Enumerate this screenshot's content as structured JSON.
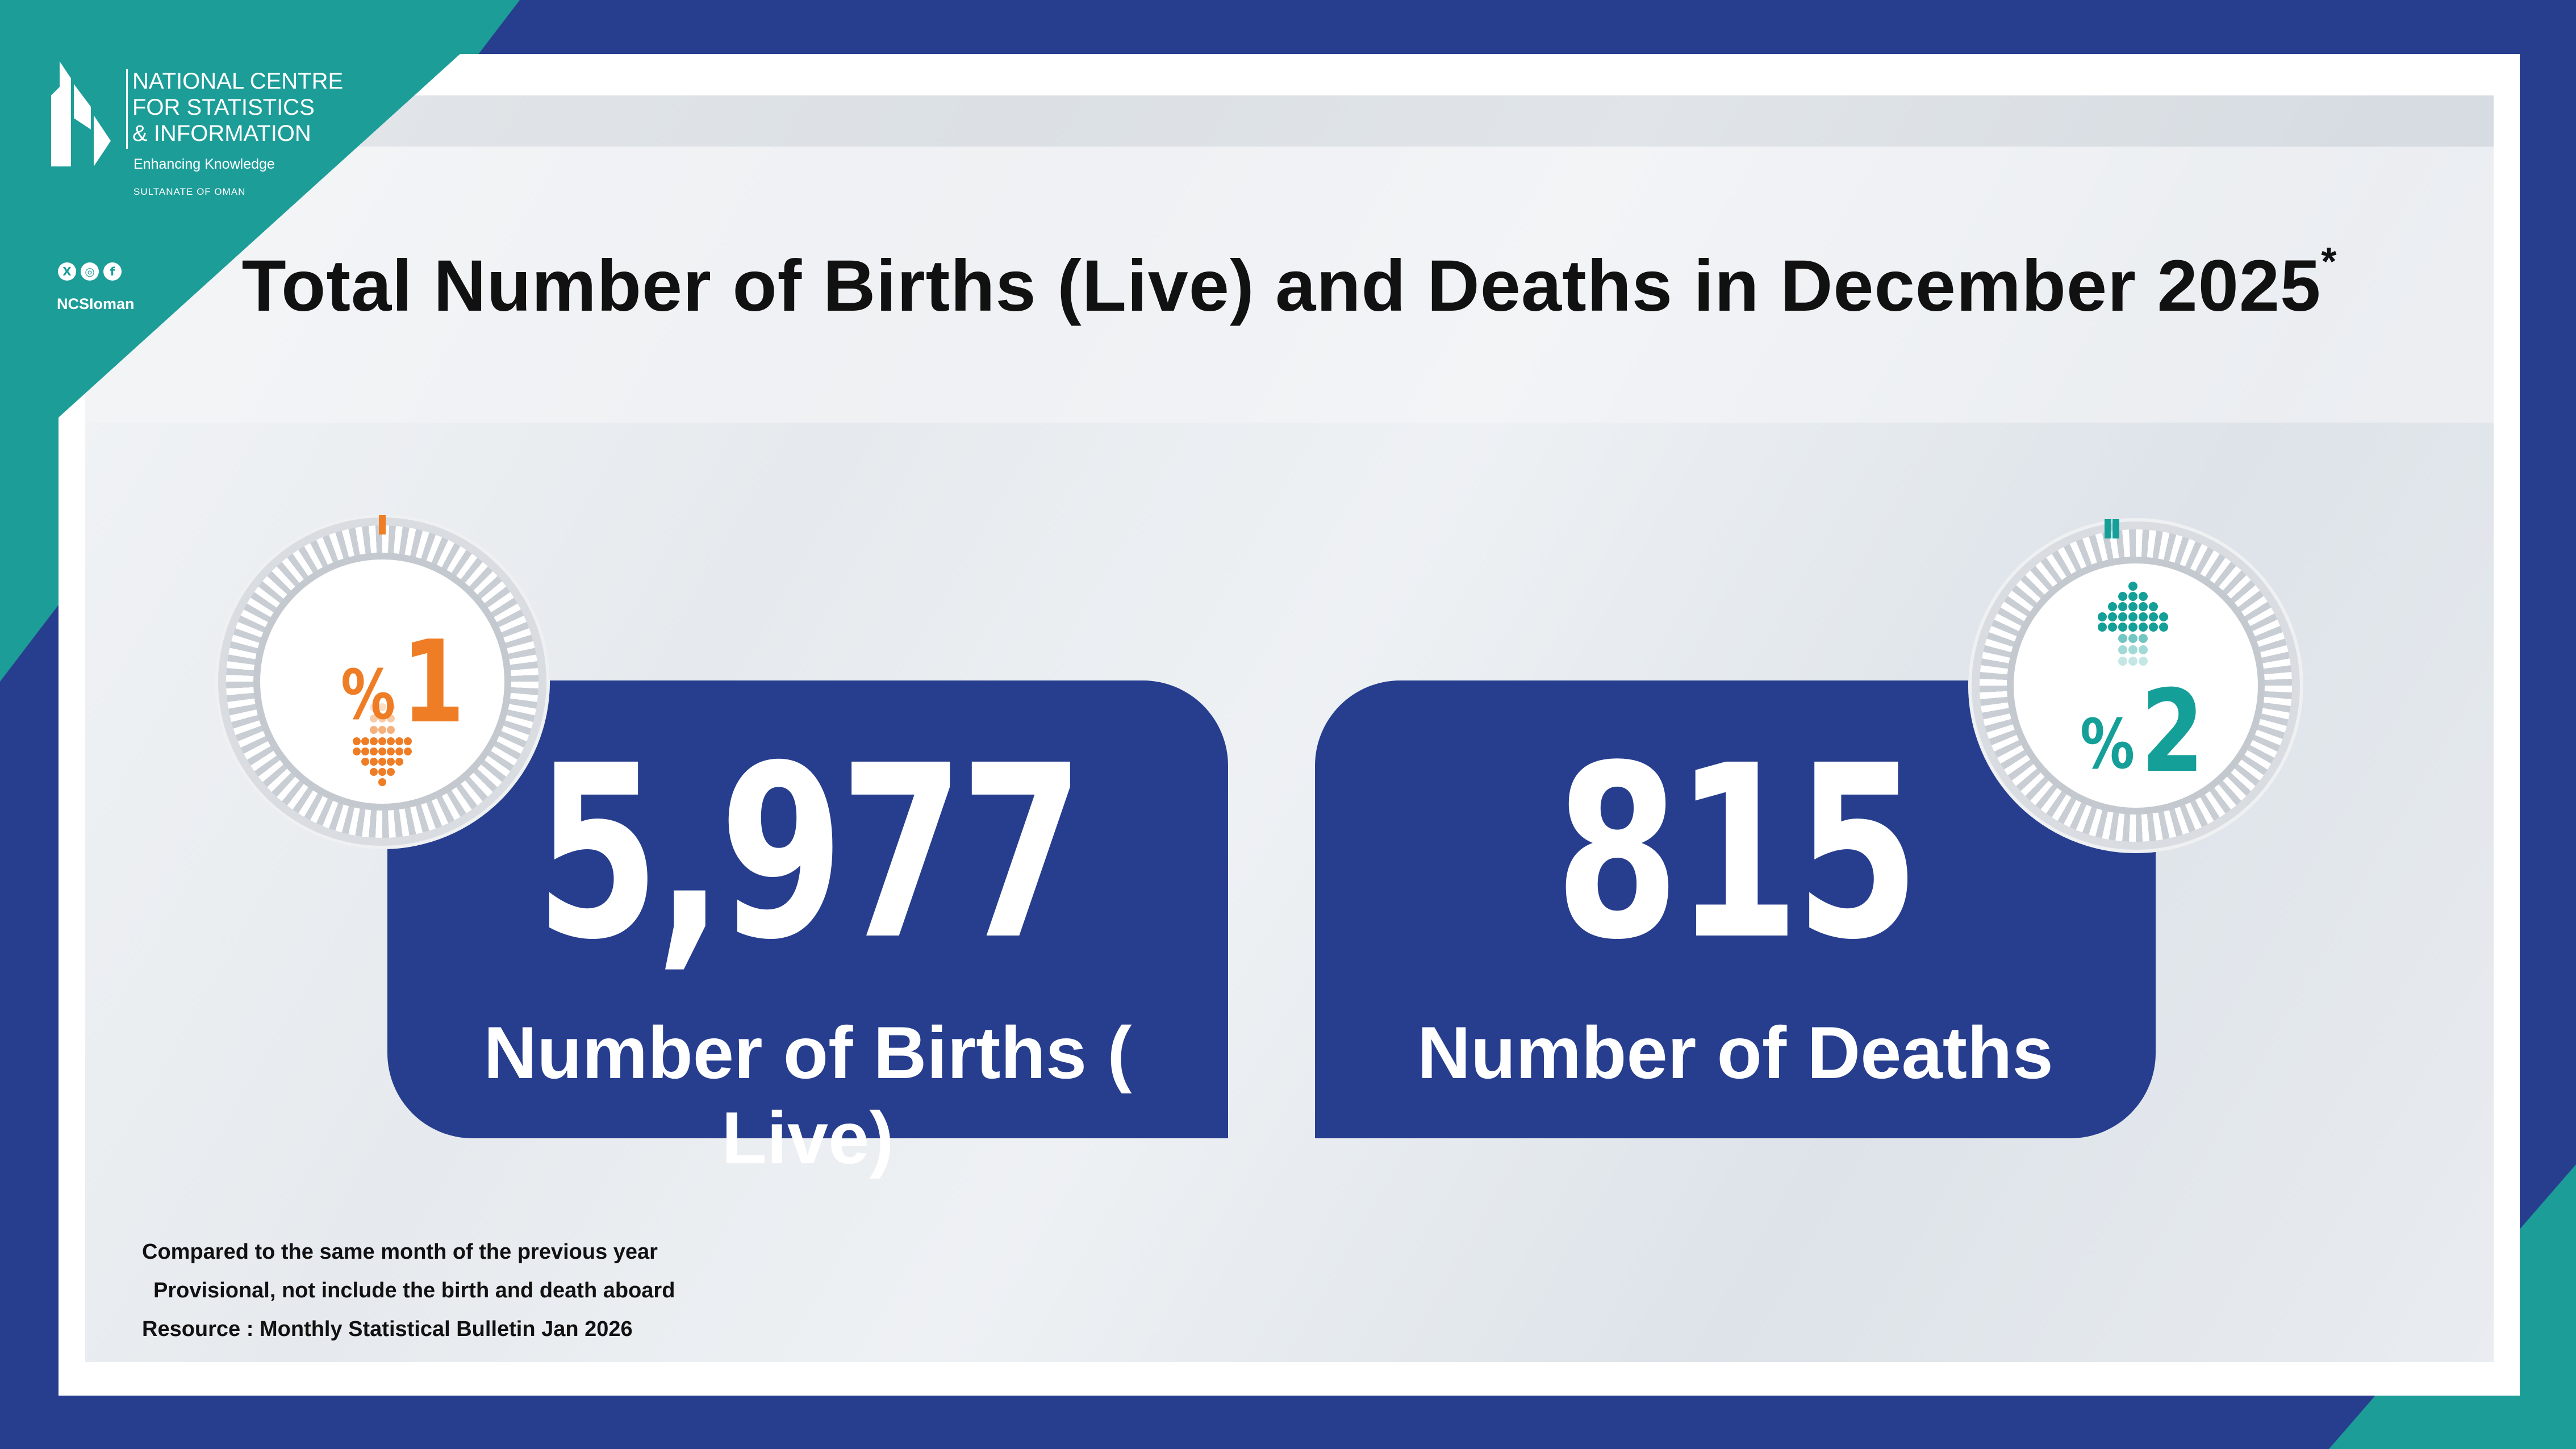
{
  "header": {
    "title": "Total Number of Births (Live) and Deaths in December 2025",
    "title_mark": "*"
  },
  "logo": {
    "name_lines": [
      "NATIONAL CENTRE",
      "FOR STATISTICS",
      "& INFORMATION"
    ],
    "tagline": "Enhancing Knowledge",
    "country": "SULTANATE OF OMAN"
  },
  "social": {
    "handle": "NCSIoman",
    "icons": [
      "x-icon",
      "instagram-icon",
      "facebook-icon"
    ]
  },
  "births": {
    "value": "5,977",
    "label": "Number of Births ( Live)",
    "change_value": "1",
    "change_symbol": "%",
    "direction": "down",
    "accent": "#ee7d25"
  },
  "deaths": {
    "value": "815",
    "label": "Number of Deaths",
    "change_value": "2",
    "change_symbol": "%",
    "direction": "up",
    "accent": "#149f98"
  },
  "notes": [
    "Compared to the same month of the previous year",
    "Provisional, not include the birth and death aboard",
    "Resource : Monthly Statistical Bulletin Jan  2026"
  ],
  "colors": {
    "navy": "#273e8f",
    "teal": "#1d9d98",
    "orange": "#ee7d25"
  }
}
